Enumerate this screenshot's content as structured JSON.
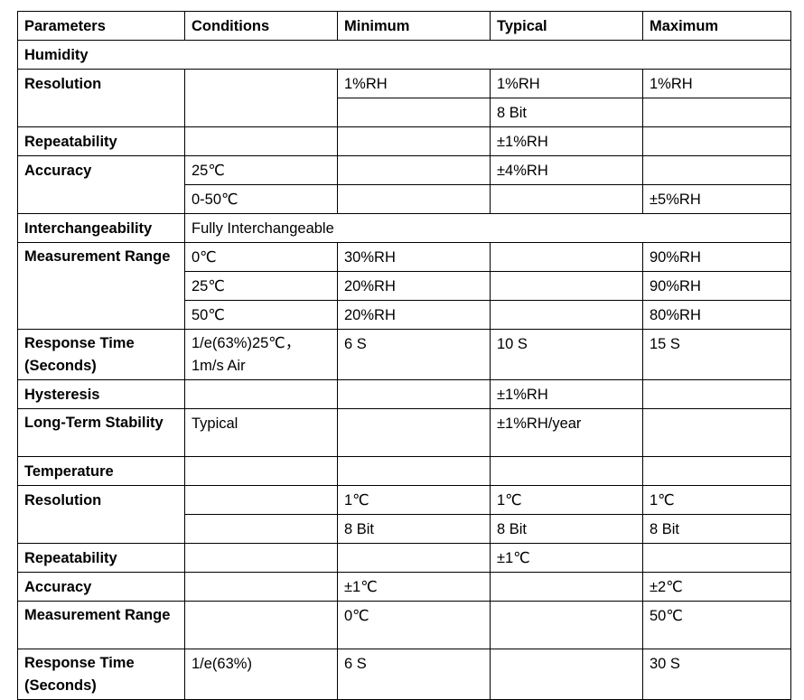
{
  "table": {
    "headers": {
      "parameters": "Parameters",
      "conditions": "Conditions",
      "minimum": "Minimum",
      "typical": "Typical",
      "maximum": "Maximum"
    },
    "humidity": {
      "section": "Humidity",
      "resolution": {
        "label": "Resolution",
        "min": "1%RH",
        "typ": "1%RH",
        "max": "1%RH",
        "typ2": "8 Bit"
      },
      "repeatability": {
        "label": "Repeatability",
        "typ": "±1%RH"
      },
      "accuracy": {
        "label": "Accuracy",
        "cond1": "25℃",
        "typ1": "±4%RH",
        "cond2": "0-50℃",
        "max2": "±5%RH"
      },
      "interchangeability": {
        "label": "Interchangeability",
        "value": "Fully Interchangeable"
      },
      "measurement_range": {
        "label": "Measurement Range",
        "rows": [
          {
            "cond": "0℃",
            "min": "30%RH",
            "max": "90%RH"
          },
          {
            "cond": "25℃",
            "min": "20%RH",
            "max": "90%RH"
          },
          {
            "cond": "50℃",
            "min": "20%RH",
            "max": "80%RH"
          }
        ]
      },
      "response_time": {
        "label": "Response Time (Seconds)",
        "cond": "1/e(63%)25℃， 1m/s Air",
        "min": "6 S",
        "typ": "10 S",
        "max": "15 S"
      },
      "hysteresis": {
        "label": "Hysteresis",
        "typ": "±1%RH"
      },
      "long_term_stability": {
        "label": "Long-Term Stability",
        "cond": "Typical",
        "typ": "±1%RH/year"
      }
    },
    "temperature": {
      "section": "Temperature",
      "resolution": {
        "label": "Resolution",
        "min": "1℃",
        "typ": "1℃",
        "max": "1℃",
        "min2": "8 Bit",
        "typ2": "8 Bit",
        "max2": "8 Bit"
      },
      "repeatability": {
        "label": "Repeatability",
        "typ": "±1℃"
      },
      "accuracy": {
        "label": "Accuracy",
        "min": "±1℃",
        "max": "±2℃"
      },
      "measurement_range": {
        "label": "Measurement Range",
        "min": "0℃",
        "max": "50℃"
      },
      "response_time": {
        "label": "Response Time (Seconds)",
        "cond": "1/e(63%)",
        "min": "6 S",
        "max": "30 S"
      }
    }
  }
}
